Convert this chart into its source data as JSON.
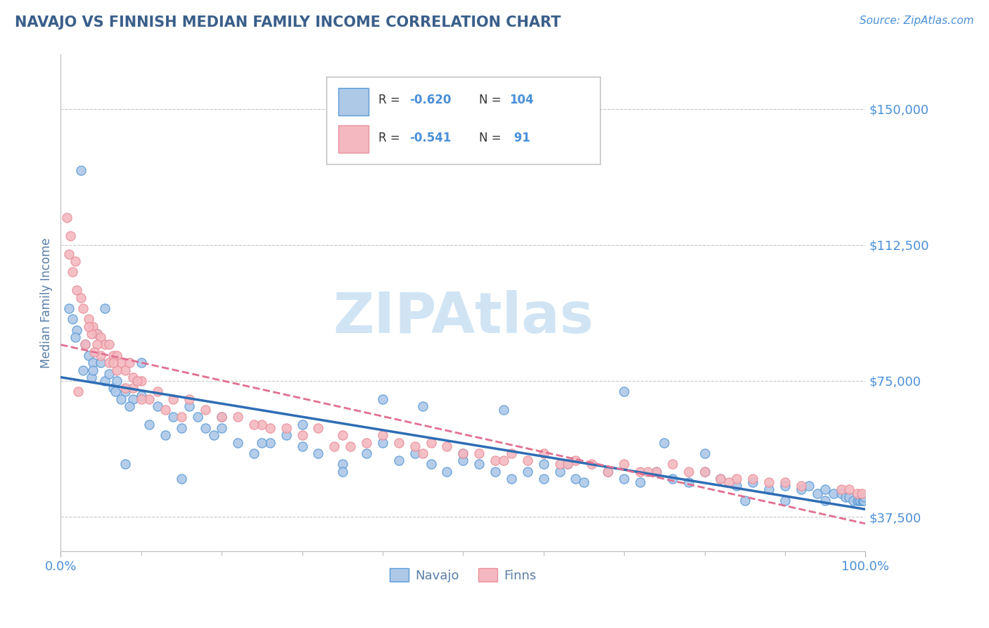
{
  "title": "NAVAJO VS FINNISH MEDIAN FAMILY INCOME CORRELATION CHART",
  "source_text": "Source: ZipAtlas.com",
  "ylabel": "Median Family Income",
  "xlim": [
    0.0,
    100.0
  ],
  "ylim": [
    28000,
    165000
  ],
  "yticks": [
    37500,
    75000,
    112500,
    150000
  ],
  "ytick_labels": [
    "$37,500",
    "$75,000",
    "$112,500",
    "$150,000"
  ],
  "xtick_labels": [
    "0.0%",
    "100.0%"
  ],
  "navajo_color": "#aec8e8",
  "finns_color": "#f4b8c0",
  "navajo_edge_color": "#5b9bd5",
  "finns_edge_color": "#e8909a",
  "navajo_line_color": "#2e6db4",
  "finns_line_color": "#e07090",
  "background_color": "#ffffff",
  "grid_color": "#c8c8c8",
  "title_color": "#3a5f8a",
  "axis_label_color": "#5a7fa8",
  "tick_label_color": "#4a90d9",
  "watermark_text": "ZIPAtlas",
  "watermark_color": "#d0e4f4",
  "legend_text_color": "#333333",
  "legend_value_color": "#4a90d9",
  "navajo_scatter_x": [
    2.5,
    4.5,
    1.0,
    1.5,
    2.0,
    3.0,
    3.5,
    4.0,
    1.8,
    2.8,
    3.8,
    5.0,
    5.5,
    6.0,
    6.5,
    7.0,
    8.0,
    9.0,
    10.0,
    12.0,
    14.0,
    16.0,
    18.0,
    20.0,
    5.5,
    6.8,
    7.5,
    8.5,
    11.0,
    13.0,
    15.0,
    17.0,
    19.0,
    22.0,
    24.0,
    26.0,
    28.0,
    30.0,
    32.0,
    35.0,
    38.0,
    40.0,
    42.0,
    44.0,
    46.0,
    48.0,
    50.0,
    52.0,
    54.0,
    56.0,
    58.0,
    60.0,
    62.0,
    64.0,
    65.0,
    68.0,
    70.0,
    72.0,
    74.0,
    76.0,
    78.0,
    80.0,
    82.0,
    84.0,
    86.0,
    88.0,
    90.0,
    92.0,
    93.0,
    94.0,
    95.0,
    96.0,
    97.0,
    97.5,
    98.0,
    98.5,
    99.0,
    99.2,
    99.4,
    99.6,
    99.7,
    99.8,
    99.9,
    40.0,
    55.0,
    63.0,
    70.0,
    80.0,
    4.0,
    20.0,
    10.0,
    25.0,
    35.0,
    45.0,
    85.0,
    90.0,
    95.0,
    30.0,
    15.0,
    50.0,
    75.0,
    8.0,
    60.0
  ],
  "navajo_scatter_y": [
    133000,
    88000,
    95000,
    92000,
    89000,
    85000,
    82000,
    80000,
    87000,
    78000,
    76000,
    80000,
    75000,
    77000,
    73000,
    75000,
    72000,
    70000,
    71000,
    68000,
    65000,
    68000,
    62000,
    65000,
    95000,
    72000,
    70000,
    68000,
    63000,
    60000,
    62000,
    65000,
    60000,
    58000,
    55000,
    58000,
    60000,
    57000,
    55000,
    52000,
    55000,
    58000,
    53000,
    55000,
    52000,
    50000,
    53000,
    52000,
    50000,
    48000,
    50000,
    52000,
    50000,
    48000,
    47000,
    50000,
    48000,
    47000,
    50000,
    48000,
    47000,
    50000,
    48000,
    46000,
    47000,
    45000,
    46000,
    45000,
    46000,
    44000,
    45000,
    44000,
    44000,
    43000,
    43000,
    42000,
    42000,
    42000,
    42000,
    42000,
    42000,
    42000,
    43000,
    70000,
    67000,
    52000,
    72000,
    55000,
    78000,
    62000,
    80000,
    58000,
    50000,
    68000,
    42000,
    42000,
    42000,
    63000,
    48000,
    55000,
    58000,
    52000,
    48000
  ],
  "finns_scatter_x": [
    0.8,
    1.0,
    1.5,
    2.0,
    2.5,
    1.2,
    1.8,
    2.8,
    3.5,
    4.0,
    4.5,
    5.0,
    5.5,
    6.0,
    6.5,
    7.0,
    7.5,
    8.0,
    8.5,
    9.0,
    10.0,
    12.0,
    14.0,
    16.0,
    18.0,
    20.0,
    22.0,
    25.0,
    28.0,
    30.0,
    32.0,
    35.0,
    38.0,
    40.0,
    42.0,
    44.0,
    46.0,
    48.0,
    50.0,
    52.0,
    54.0,
    56.0,
    58.0,
    60.0,
    62.0,
    64.0,
    66.0,
    68.0,
    70.0,
    72.0,
    74.0,
    76.0,
    78.0,
    80.0,
    82.0,
    84.0,
    86.0,
    88.0,
    90.0,
    3.0,
    5.0,
    7.0,
    9.0,
    11.0,
    13.0,
    15.0,
    24.0,
    34.0,
    6.0,
    4.5,
    3.8,
    26.0,
    36.0,
    45.0,
    55.0,
    63.0,
    73.0,
    83.0,
    92.0,
    97.0,
    98.0,
    99.0,
    99.5,
    2.2,
    4.2,
    8.0,
    10.0,
    3.5,
    6.5,
    9.5
  ],
  "finns_scatter_y": [
    120000,
    110000,
    105000,
    100000,
    98000,
    115000,
    108000,
    95000,
    92000,
    90000,
    88000,
    87000,
    85000,
    85000,
    82000,
    82000,
    80000,
    78000,
    80000,
    76000,
    75000,
    72000,
    70000,
    70000,
    67000,
    65000,
    65000,
    63000,
    62000,
    60000,
    62000,
    60000,
    58000,
    60000,
    58000,
    57000,
    58000,
    57000,
    55000,
    55000,
    53000,
    55000,
    53000,
    55000,
    52000,
    53000,
    52000,
    50000,
    52000,
    50000,
    50000,
    52000,
    50000,
    50000,
    48000,
    48000,
    48000,
    47000,
    47000,
    85000,
    82000,
    78000,
    73000,
    70000,
    67000,
    65000,
    63000,
    57000,
    80000,
    85000,
    88000,
    62000,
    57000,
    55000,
    53000,
    52000,
    50000,
    47000,
    46000,
    45000,
    45000,
    44000,
    44000,
    72000,
    83000,
    73000,
    70000,
    90000,
    80000,
    75000
  ]
}
